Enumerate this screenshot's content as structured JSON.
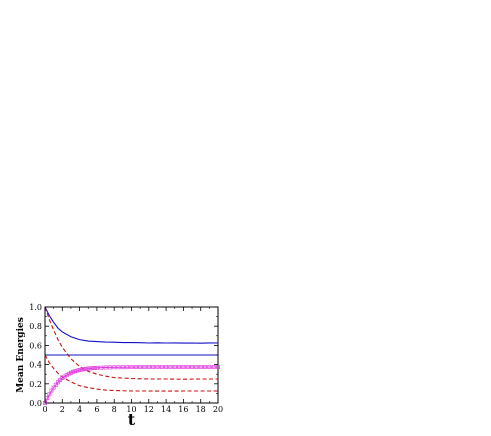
{
  "chart_data": {
    "type": "line",
    "title": "",
    "xlabel": "t",
    "ylabel": "Mean Energies",
    "xlim": [
      0,
      20
    ],
    "ylim": [
      0,
      1.0
    ],
    "xticks": [
      "0",
      "2",
      "4",
      "6",
      "8",
      "10",
      "12",
      "14",
      "16",
      "18",
      "20"
    ],
    "yticks": [
      "0.0",
      "0.2",
      "0.4",
      "0.6",
      "0.8",
      "1.0"
    ],
    "grid": false,
    "legend": "none",
    "series": [
      {
        "style": "solid",
        "color": "#1010c8",
        "x": [
          0,
          0.5,
          1,
          1.5,
          2,
          3,
          4,
          5,
          6,
          7,
          8,
          9,
          10,
          11,
          12,
          13,
          14,
          15,
          16,
          17,
          18,
          19,
          20
        ],
        "y": [
          1.0,
          0.91,
          0.84,
          0.78,
          0.74,
          0.69,
          0.66,
          0.645,
          0.64,
          0.635,
          0.633,
          0.63,
          0.63,
          0.628,
          0.625,
          0.627,
          0.625,
          0.626,
          0.624,
          0.625,
          0.623,
          0.626,
          0.625
        ]
      },
      {
        "style": "solid",
        "color": "#1010c8",
        "x": [
          0,
          2,
          4,
          6,
          8,
          10,
          12,
          14,
          16,
          18,
          20
        ],
        "y": [
          0.5,
          0.5,
          0.5,
          0.5,
          0.5,
          0.5,
          0.5,
          0.5,
          0.5,
          0.5,
          0.5
        ]
      },
      {
        "style": "dashed",
        "color": "#c81010",
        "x": [
          0,
          0.5,
          1,
          1.5,
          2,
          3,
          4,
          5,
          6,
          7,
          8,
          10,
          12,
          14,
          16,
          18,
          20
        ],
        "y": [
          1.0,
          0.87,
          0.76,
          0.66,
          0.58,
          0.46,
          0.38,
          0.33,
          0.3,
          0.28,
          0.265,
          0.255,
          0.25,
          0.25,
          0.248,
          0.25,
          0.25
        ]
      },
      {
        "style": "dashed",
        "color": "#c81010",
        "x": [
          0,
          0.5,
          1,
          1.5,
          2,
          3,
          4,
          5,
          6,
          7,
          8,
          10,
          12,
          14,
          16,
          18,
          20
        ],
        "y": [
          0.5,
          0.42,
          0.36,
          0.31,
          0.27,
          0.22,
          0.18,
          0.16,
          0.145,
          0.135,
          0.13,
          0.125,
          0.125,
          0.124,
          0.125,
          0.125,
          0.125
        ]
      },
      {
        "style": "markers",
        "color": "#e040e0",
        "x": [
          0,
          0.25,
          0.5,
          0.75,
          1,
          1.25,
          1.5,
          1.75,
          2,
          2.25,
          2.5,
          2.75,
          3,
          3.25,
          3.5,
          3.75,
          4,
          4.25,
          4.5,
          4.75,
          5,
          5.25,
          5.5,
          5.75,
          6,
          6.5,
          7,
          7.5,
          8,
          8.5,
          9,
          9.5,
          10,
          10.5,
          11,
          11.5,
          12,
          12.5,
          13,
          13.5,
          14,
          14.5,
          15,
          15.5,
          16,
          16.5,
          17,
          17.5,
          18,
          18.5,
          19,
          19.5,
          20
        ],
        "y": [
          0.0,
          0.05,
          0.09,
          0.13,
          0.16,
          0.19,
          0.215,
          0.24,
          0.26,
          0.275,
          0.29,
          0.305,
          0.315,
          0.325,
          0.332,
          0.338,
          0.344,
          0.349,
          0.352,
          0.356,
          0.358,
          0.361,
          0.363,
          0.365,
          0.366,
          0.368,
          0.37,
          0.371,
          0.372,
          0.373,
          0.373,
          0.374,
          0.374,
          0.375,
          0.375,
          0.375,
          0.375,
          0.375,
          0.375,
          0.375,
          0.375,
          0.375,
          0.375,
          0.375,
          0.375,
          0.375,
          0.375,
          0.375,
          0.375,
          0.375,
          0.375,
          0.375,
          0.375
        ]
      },
      {
        "style": "solid",
        "color": "#e040e0",
        "x": [
          0,
          0.5,
          1,
          1.5,
          2,
          3,
          4,
          5,
          6,
          7,
          8,
          10,
          12,
          14,
          16,
          18,
          20
        ],
        "y": [
          0.0,
          0.09,
          0.16,
          0.215,
          0.26,
          0.315,
          0.344,
          0.358,
          0.366,
          0.37,
          0.372,
          0.374,
          0.375,
          0.375,
          0.375,
          0.375,
          0.375
        ]
      }
    ]
  }
}
